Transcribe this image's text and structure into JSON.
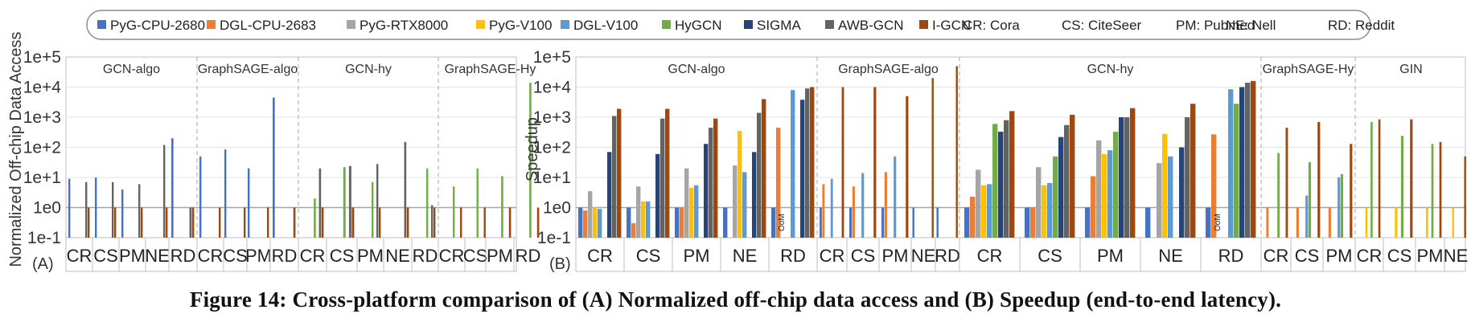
{
  "legend": {
    "platforms": [
      {
        "label": "PyG-CPU-2680",
        "color": "#4472C4"
      },
      {
        "label": "DGL-CPU-2683",
        "color": "#ED7D31"
      },
      {
        "label": "PyG-RTX8000",
        "color": "#A5A5A5"
      },
      {
        "label": "PyG-V100",
        "color": "#FFC000"
      },
      {
        "label": "DGL-V100",
        "color": "#5B9BD5"
      },
      {
        "label": "HyGCN",
        "color": "#70AD47"
      },
      {
        "label": "SIGMA",
        "color": "#264478"
      },
      {
        "label": "AWB-GCN",
        "color": "#636363"
      },
      {
        "label": "I-GCN",
        "color": "#9E480E"
      }
    ],
    "datasets": [
      "CR: Cora",
      "CS: CiteSeer",
      "PM: Pubmed",
      "NE: Nell",
      "RD: Reddit"
    ]
  },
  "caption": "Figure 14: Cross-platform comparison of (A) Normalized off-chip data access and (B) Speedup (end-to-end latency).",
  "chart_data": [
    {
      "type": "bar",
      "panel": "(A)",
      "ylabel": "Normalized Off-chip Data Access",
      "yscale": "log",
      "ylim": [
        0.1,
        100000
      ],
      "yticks": [
        "1e-1",
        "1e0",
        "1e+1",
        "1e+2",
        "1e+3",
        "1e+4",
        "1e+5"
      ],
      "grid": true,
      "series_names": [
        "PyG-CPU-2680",
        "DGL-CPU-2683",
        "PyG-RTX8000",
        "PyG-V100",
        "DGL-V100",
        "HyGCN",
        "SIGMA",
        "AWB-GCN",
        "I-GCN"
      ],
      "groups": [
        {
          "name": "GCN-algo",
          "categories": [
            {
              "label": "CR",
              "values": {
                "PyG-CPU-2680": 9,
                "AWB-GCN": 7,
                "I-GCN": 1
              }
            },
            {
              "label": "CS",
              "values": {
                "PyG-CPU-2680": 10,
                "AWB-GCN": 7,
                "I-GCN": 1
              }
            },
            {
              "label": "PM",
              "values": {
                "PyG-CPU-2680": 4,
                "AWB-GCN": 6,
                "I-GCN": 1
              }
            },
            {
              "label": "NE",
              "values": {
                "AWB-GCN": 120,
                "I-GCN": 1
              }
            },
            {
              "label": "RD",
              "values": {
                "PyG-CPU-2680": 200,
                "AWB-GCN": 1,
                "I-GCN": 1
              }
            }
          ]
        },
        {
          "name": "GraphSAGE-algo",
          "categories": [
            {
              "label": "CR",
              "values": {
                "PyG-CPU-2680": 50,
                "I-GCN": 1
              }
            },
            {
              "label": "CS",
              "values": {
                "PyG-CPU-2680": 85,
                "I-GCN": 1
              }
            },
            {
              "label": "PM",
              "values": {
                "PyG-CPU-2680": 20,
                "I-GCN": 1
              }
            },
            {
              "label": "RD",
              "values": {
                "PyG-CPU-2680": 4500,
                "I-GCN": 1
              }
            }
          ]
        },
        {
          "name": "GCN-hy",
          "categories": [
            {
              "label": "CR",
              "values": {
                "HyGCN": 2,
                "AWB-GCN": 20,
                "I-GCN": 1
              }
            },
            {
              "label": "CS",
              "values": {
                "HyGCN": 22,
                "AWB-GCN": 24,
                "I-GCN": 1
              }
            },
            {
              "label": "PM",
              "values": {
                "HyGCN": 7,
                "AWB-GCN": 28,
                "I-GCN": 1
              }
            },
            {
              "label": "NE",
              "values": {
                "AWB-GCN": 150,
                "I-GCN": 1
              }
            },
            {
              "label": "RD",
              "values": {
                "HyGCN": 20,
                "AWB-GCN": 1.2,
                "I-GCN": 1
              }
            }
          ]
        },
        {
          "name": "GraphSAGE-Hy",
          "categories": [
            {
              "label": "CR",
              "values": {
                "HyGCN": 5,
                "I-GCN": 1
              }
            },
            {
              "label": "CS",
              "values": {
                "HyGCN": 20,
                "I-GCN": 1
              }
            },
            {
              "label": "PM",
              "values": {
                "HyGCN": 11,
                "I-GCN": 1
              }
            },
            {
              "label": "RD",
              "values": {
                "HyGCN": 14000,
                "I-GCN": 1
              }
            }
          ]
        }
      ]
    },
    {
      "type": "bar",
      "panel": "(B)",
      "ylabel": "Speedup",
      "yscale": "log",
      "ylim": [
        0.1,
        100000
      ],
      "yticks": [
        "1e-1",
        "1e0",
        "1e+1",
        "1e+2",
        "1e+3",
        "1e+4",
        "1e+5"
      ],
      "grid": true,
      "series_names": [
        "PyG-CPU-2680",
        "DGL-CPU-2683",
        "PyG-RTX8000",
        "PyG-V100",
        "DGL-V100",
        "HyGCN",
        "SIGMA",
        "AWB-GCN",
        "I-GCN"
      ],
      "groups": [
        {
          "name": "GCN-algo",
          "categories": [
            {
              "label": "CR",
              "values": {
                "PyG-CPU-2680": 1,
                "DGL-CPU-2683": 0.8,
                "PyG-RTX8000": 3.5,
                "PyG-V100": 1,
                "DGL-V100": 0.9,
                "SIGMA": 70,
                "AWB-GCN": 1100,
                "I-GCN": 1900
              }
            },
            {
              "label": "CS",
              "values": {
                "PyG-CPU-2680": 1,
                "DGL-CPU-2683": 0.3,
                "PyG-RTX8000": 5,
                "PyG-V100": 1.6,
                "DGL-V100": 1.6,
                "SIGMA": 60,
                "AWB-GCN": 900,
                "I-GCN": 1900
              }
            },
            {
              "label": "PM",
              "values": {
                "PyG-CPU-2680": 1,
                "DGL-CPU-2683": 1,
                "PyG-RTX8000": 20,
                "PyG-V100": 4.5,
                "DGL-V100": 5.5,
                "SIGMA": 130,
                "AWB-GCN": 450,
                "I-GCN": 900
              }
            },
            {
              "label": "NE",
              "values": {
                "PyG-CPU-2680": 1,
                "PyG-RTX8000": 25,
                "PyG-V100": 350,
                "DGL-V100": 15,
                "SIGMA": 70,
                "AWB-GCN": 1400,
                "I-GCN": 4000
              }
            },
            {
              "label": "RD",
              "values": {
                "PyG-CPU-2680": 1,
                "DGL-CPU-2683": 450,
                "DGL-V100": 8000,
                "SIGMA": 3800,
                "AWB-GCN": 9000,
                "I-GCN": 10000
              }
            }
          ]
        },
        {
          "name": "GraphSAGE-algo",
          "categories": [
            {
              "label": "CR",
              "values": {
                "PyG-CPU-2680": 1,
                "DGL-CPU-2683": 6,
                "DGL-V100": 9,
                "I-GCN": 10000
              }
            },
            {
              "label": "CS",
              "values": {
                "PyG-CPU-2680": 1,
                "DGL-CPU-2683": 5,
                "DGL-V100": 14,
                "I-GCN": 10000
              }
            },
            {
              "label": "PM",
              "values": {
                "PyG-CPU-2680": 1,
                "DGL-CPU-2683": 15,
                "DGL-V100": 50,
                "I-GCN": 5000
              }
            },
            {
              "label": "NE",
              "values": {
                "PyG-CPU-2680": 1,
                "I-GCN": 20000
              }
            },
            {
              "label": "RD",
              "values": {
                "PyG-CPU-2680": 1,
                "I-GCN": 50000
              }
            }
          ]
        },
        {
          "name": "GCN-hy",
          "categories": [
            {
              "label": "CR",
              "values": {
                "PyG-CPU-2680": 1,
                "DGL-CPU-2683": 2.3,
                "PyG-RTX8000": 18,
                "PyG-V100": 5.5,
                "DGL-V100": 6,
                "HyGCN": 600,
                "SIGMA": 330,
                "AWB-GCN": 800,
                "I-GCN": 1600
              }
            },
            {
              "label": "CS",
              "values": {
                "PyG-CPU-2680": 1,
                "DGL-CPU-2683": 1,
                "PyG-RTX8000": 22,
                "PyG-V100": 5.5,
                "DGL-V100": 6.5,
                "HyGCN": 50,
                "SIGMA": 220,
                "AWB-GCN": 550,
                "I-GCN": 1200
              }
            },
            {
              "label": "PM",
              "values": {
                "PyG-CPU-2680": 1,
                "DGL-CPU-2683": 11,
                "PyG-RTX8000": 170,
                "PyG-V100": 60,
                "DGL-V100": 80,
                "HyGCN": 330,
                "SIGMA": 1000,
                "AWB-GCN": 1000,
                "I-GCN": 2000
              }
            },
            {
              "label": "NE",
              "values": {
                "PyG-CPU-2680": 1,
                "PyG-RTX8000": 30,
                "PyG-V100": 280,
                "DGL-V100": 50,
                "SIGMA": 100,
                "AWB-GCN": 1000,
                "I-GCN": 2800
              }
            },
            {
              "label": "RD",
              "values": {
                "PyG-CPU-2680": 1,
                "DGL-CPU-2683": 270,
                "DGL-V100": 8500,
                "HyGCN": 2800,
                "SIGMA": 10000,
                "AWB-GCN": 14000,
                "I-GCN": 16000
              }
            }
          ]
        },
        {
          "name": "GraphSAGE-Hy",
          "categories": [
            {
              "label": "CR",
              "values": {
                "DGL-CPU-2683": 1,
                "HyGCN": 65,
                "I-GCN": 450
              }
            },
            {
              "label": "CS",
              "values": {
                "DGL-CPU-2683": 1,
                "DGL-V100": 2.5,
                "HyGCN": 32,
                "I-GCN": 700
              }
            },
            {
              "label": "PM",
              "values": {
                "DGL-CPU-2683": 1,
                "DGL-V100": 10,
                "HyGCN": 13,
                "I-GCN": 130
              }
            }
          ]
        },
        {
          "name": "GIN",
          "categories": [
            {
              "label": "CR",
              "values": {
                "PyG-V100": 1,
                "HyGCN": 700,
                "I-GCN": 850
              }
            },
            {
              "label": "CS",
              "values": {
                "PyG-V100": 1,
                "HyGCN": 240,
                "I-GCN": 850
              }
            },
            {
              "label": "PM",
              "values": {
                "PyG-V100": 1,
                "HyGCN": 130,
                "I-GCN": 150
              }
            },
            {
              "label": "NE",
              "values": {
                "PyG-V100": 1,
                "I-GCN": 50
              }
            }
          ]
        }
      ],
      "annotations": [
        {
          "text": "OoM",
          "group": "GCN-algo",
          "category": "RD"
        },
        {
          "text": "OoM",
          "group": "GCN-hy",
          "category": "RD"
        }
      ]
    }
  ]
}
